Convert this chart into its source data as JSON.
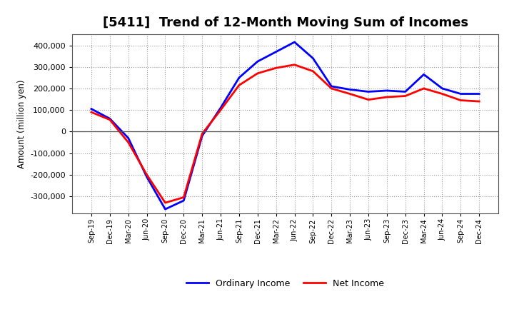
{
  "title": "[5411]  Trend of 12-Month Moving Sum of Incomes",
  "ylabel": "Amount (million yen)",
  "x_labels": [
    "Sep-19",
    "Dec-19",
    "Mar-20",
    "Jun-20",
    "Sep-20",
    "Dec-20",
    "Mar-21",
    "Jun-21",
    "Sep-21",
    "Dec-21",
    "Mar-22",
    "Jun-22",
    "Sep-22",
    "Dec-22",
    "Mar-23",
    "Jun-23",
    "Sep-23",
    "Dec-23",
    "Mar-24",
    "Jun-24",
    "Sep-24",
    "Dec-24"
  ],
  "ordinary_income": [
    105000,
    60000,
    -30000,
    -210000,
    -360000,
    -320000,
    -20000,
    110000,
    250000,
    325000,
    370000,
    415000,
    340000,
    210000,
    195000,
    185000,
    190000,
    185000,
    265000,
    200000,
    175000,
    175000
  ],
  "net_income": [
    90000,
    55000,
    -50000,
    -200000,
    -330000,
    -305000,
    -10000,
    100000,
    215000,
    270000,
    295000,
    310000,
    280000,
    200000,
    175000,
    148000,
    160000,
    165000,
    200000,
    175000,
    145000,
    140000
  ],
  "ordinary_income_color": "#0000ff",
  "net_income_color": "#ff0000",
  "line_width": 2.0,
  "ylim": [
    -380000,
    450000
  ],
  "yticks": [
    -300000,
    -200000,
    -100000,
    0,
    100000,
    200000,
    300000,
    400000
  ],
  "background_color": "#ffffff",
  "grid_color": "#999999",
  "title_fontsize": 13,
  "legend_labels": [
    "Ordinary Income",
    "Net Income"
  ]
}
